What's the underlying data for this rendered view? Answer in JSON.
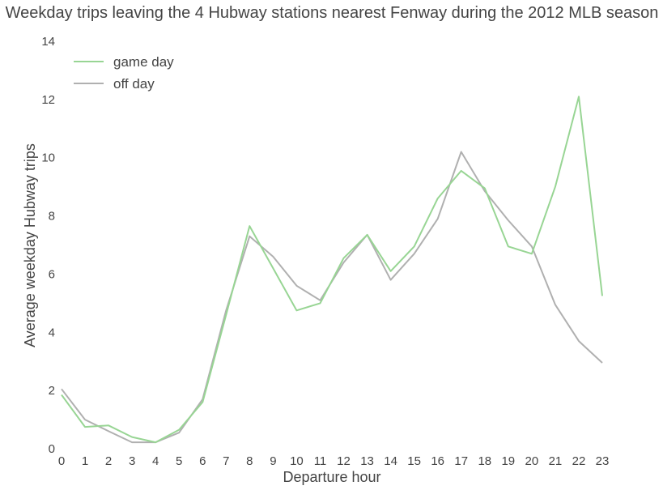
{
  "chart_data": {
    "type": "line",
    "title": "Weekday trips leaving the 4 Hubway stations nearest Fenway during the 2012 MLB season",
    "xlabel": "Departure hour",
    "ylabel": "Average weekday Hubway trips",
    "xlim": [
      0,
      23
    ],
    "ylim": [
      0,
      14
    ],
    "x": [
      0,
      1,
      2,
      3,
      4,
      5,
      6,
      7,
      8,
      9,
      10,
      11,
      12,
      13,
      14,
      15,
      16,
      17,
      18,
      19,
      20,
      21,
      22,
      23
    ],
    "x_ticks": [
      "0",
      "1",
      "2",
      "3",
      "4",
      "5",
      "6",
      "7",
      "8",
      "9",
      "10",
      "11",
      "12",
      "13",
      "14",
      "15",
      "16",
      "17",
      "18",
      "19",
      "20",
      "21",
      "22",
      "23"
    ],
    "y_ticks": [
      "0",
      "2",
      "4",
      "6",
      "8",
      "10",
      "12",
      "14"
    ],
    "y_tick_values": [
      0,
      2,
      4,
      6,
      8,
      10,
      12,
      14
    ],
    "grid": false,
    "legend_position": "top-left",
    "series": [
      {
        "name": "game day",
        "color": "#98d594",
        "values": [
          1.85,
          0.75,
          0.8,
          0.4,
          0.22,
          0.65,
          1.6,
          4.6,
          7.65,
          6.2,
          4.75,
          5.0,
          6.55,
          7.35,
          6.1,
          6.95,
          8.6,
          9.55,
          8.95,
          6.95,
          6.7,
          9.0,
          12.1,
          5.25
        ]
      },
      {
        "name": "off day",
        "color": "#b0b0b0",
        "values": [
          2.05,
          1.0,
          0.6,
          0.22,
          0.22,
          0.55,
          1.7,
          4.75,
          7.3,
          6.6,
          5.6,
          5.1,
          6.4,
          7.35,
          5.8,
          6.7,
          7.9,
          10.2,
          8.85,
          7.85,
          6.95,
          4.95,
          3.7,
          2.95
        ]
      }
    ]
  }
}
